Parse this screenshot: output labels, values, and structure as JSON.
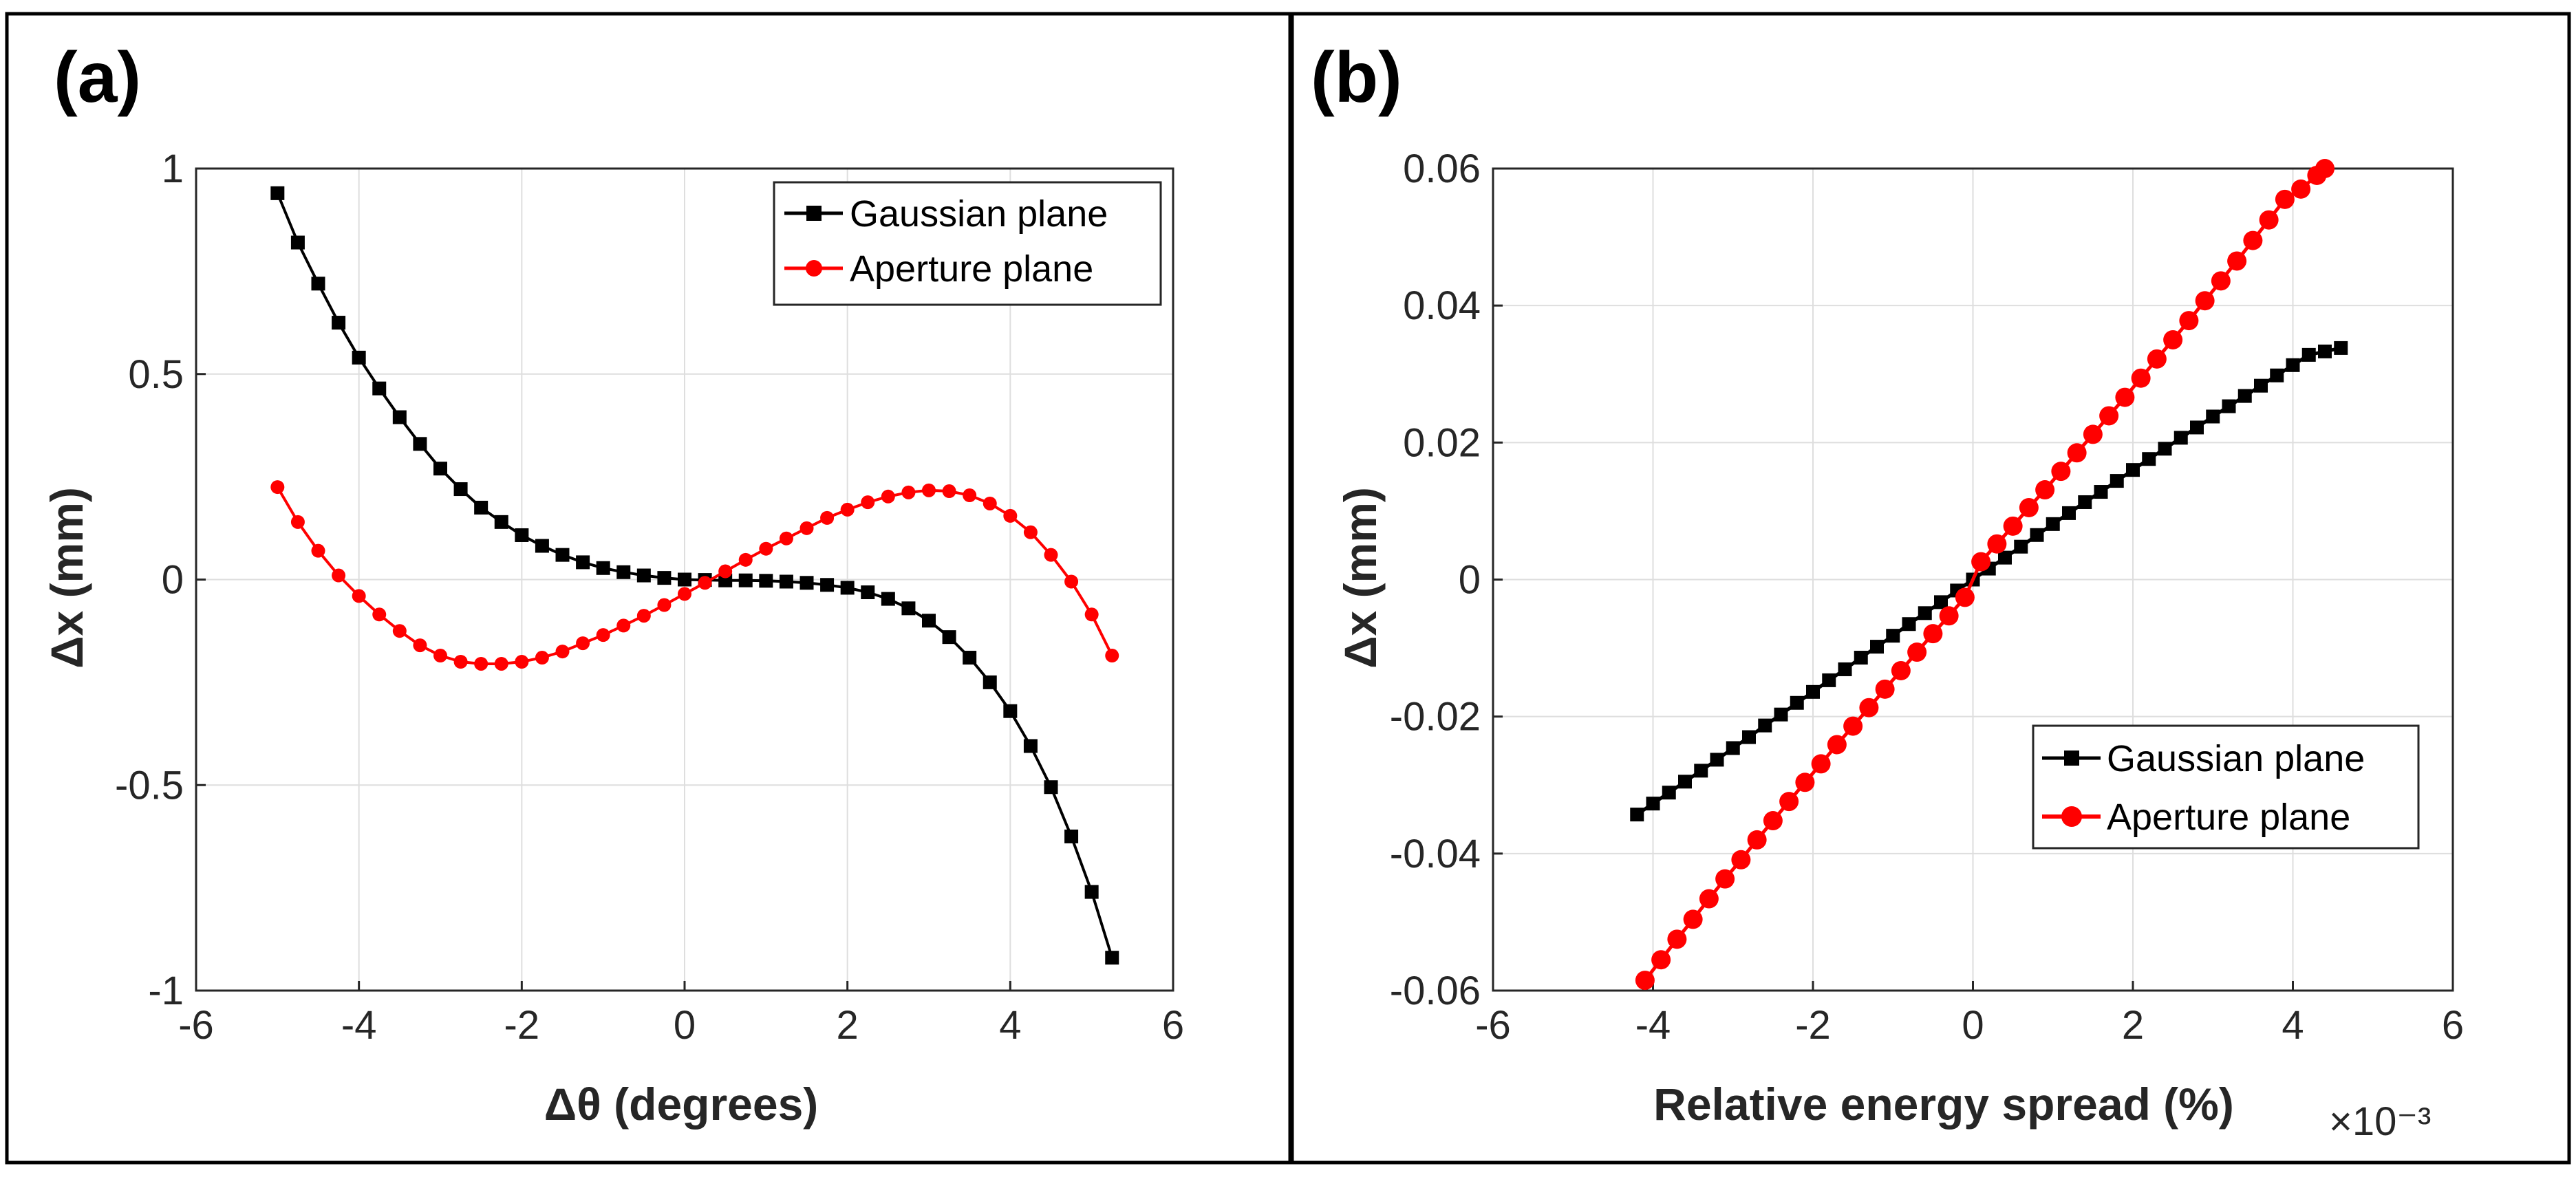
{
  "colors": {
    "gaussian": "#000000",
    "aperture": "#ff0000"
  },
  "chart_data": [
    {
      "type": "line",
      "panel_label": "(a)",
      "xlabel": "Δθ (degrees)",
      "ylabel": "Δx (mm)",
      "xlim": [
        -6,
        6
      ],
      "ylim": [
        -1,
        1
      ],
      "xticks": [
        "-6",
        "-4",
        "-2",
        "0",
        "2",
        "4",
        "6"
      ],
      "yticks": [
        "-1",
        "-0.5",
        "0",
        "0.5",
        "1"
      ],
      "grid": true,
      "legend_position": "top-right",
      "series": [
        {
          "name": "Gaussian plane",
          "marker": "square",
          "color": "#000000",
          "x": [
            -5.0,
            -4.75,
            -4.5,
            -4.25,
            -4.0,
            -3.75,
            -3.5,
            -3.25,
            -3.0,
            -2.75,
            -2.5,
            -2.25,
            -2.0,
            -1.75,
            -1.5,
            -1.25,
            -1.0,
            -0.75,
            -0.5,
            -0.25,
            0.0,
            0.25,
            0.5,
            0.75,
            1.0,
            1.25,
            1.5,
            1.75,
            2.0,
            2.25,
            2.5,
            2.75,
            3.0,
            3.25,
            3.5,
            3.75,
            4.0,
            4.25,
            4.5,
            4.75,
            5.0,
            5.25
          ],
          "y": [
            0.94,
            0.82,
            0.72,
            0.625,
            0.54,
            0.465,
            0.395,
            0.33,
            0.27,
            0.22,
            0.175,
            0.14,
            0.108,
            0.082,
            0.06,
            0.042,
            0.028,
            0.018,
            0.01,
            0.004,
            0.0,
            -0.001,
            -0.002,
            -0.002,
            -0.003,
            -0.005,
            -0.008,
            -0.013,
            -0.02,
            -0.031,
            -0.047,
            -0.07,
            -0.1,
            -0.14,
            -0.19,
            -0.25,
            -0.32,
            -0.405,
            -0.505,
            -0.625,
            -0.76,
            -0.92
          ]
        },
        {
          "name": "Aperture plane",
          "marker": "circle",
          "color": "#ff0000",
          "x": [
            -5.0,
            -4.75,
            -4.5,
            -4.25,
            -4.0,
            -3.75,
            -3.5,
            -3.25,
            -3.0,
            -2.75,
            -2.5,
            -2.25,
            -2.0,
            -1.75,
            -1.5,
            -1.25,
            -1.0,
            -0.75,
            -0.5,
            -0.25,
            0.0,
            0.25,
            0.5,
            0.75,
            1.0,
            1.25,
            1.5,
            1.75,
            2.0,
            2.25,
            2.5,
            2.75,
            3.0,
            3.25,
            3.5,
            3.75,
            4.0,
            4.25,
            4.5,
            4.75,
            5.0,
            5.25
          ],
          "y": [
            0.225,
            0.14,
            0.07,
            0.01,
            -0.04,
            -0.085,
            -0.125,
            -0.16,
            -0.185,
            -0.2,
            -0.205,
            -0.205,
            -0.2,
            -0.19,
            -0.175,
            -0.155,
            -0.135,
            -0.112,
            -0.088,
            -0.062,
            -0.035,
            -0.008,
            0.02,
            0.048,
            0.075,
            0.1,
            0.125,
            0.15,
            0.17,
            0.188,
            0.202,
            0.212,
            0.217,
            0.215,
            0.205,
            0.185,
            0.155,
            0.115,
            0.06,
            -0.005,
            -0.085,
            -0.185
          ]
        }
      ]
    },
    {
      "type": "line",
      "panel_label": "(b)",
      "xlabel": "Relative energy spread (%)",
      "ylabel": "Δx (mm)",
      "x_multiplier": "×10⁻³",
      "xlim": [
        -6,
        6
      ],
      "ylim": [
        -0.06,
        0.06
      ],
      "xticks": [
        "-6",
        "-4",
        "-2",
        "0",
        "2",
        "4",
        "6"
      ],
      "yticks": [
        "-0.06",
        "-0.04",
        "-0.02",
        "0",
        "0.02",
        "0.04",
        "0.06"
      ],
      "grid": true,
      "legend_position": "bottom-right",
      "series": [
        {
          "name": "Gaussian plane",
          "marker": "square",
          "color": "#000000",
          "x": [
            -4.2,
            -4.0,
            -3.8,
            -3.6,
            -3.4,
            -3.2,
            -3.0,
            -2.8,
            -2.6,
            -2.4,
            -2.2,
            -2.0,
            -1.8,
            -1.6,
            -1.4,
            -1.2,
            -1.0,
            -0.8,
            -0.6,
            -0.4,
            -0.2,
            0.0,
            0.2,
            0.4,
            0.6,
            0.8,
            1.0,
            1.2,
            1.4,
            1.6,
            1.8,
            2.0,
            2.2,
            2.4,
            2.6,
            2.8,
            3.0,
            3.2,
            3.4,
            3.6,
            3.8,
            4.0,
            4.2,
            4.4,
            4.6
          ],
          "y": [
            -0.0343,
            -0.0327,
            -0.0311,
            -0.0295,
            -0.0279,
            -0.0263,
            -0.0246,
            -0.023,
            -0.0213,
            -0.0197,
            -0.018,
            -0.0164,
            -0.0147,
            -0.0131,
            -0.0114,
            -0.0098,
            -0.0082,
            -0.0065,
            -0.0049,
            -0.0033,
            -0.0016,
            0.0,
            0.0016,
            0.0032,
            0.0048,
            0.0065,
            0.0081,
            0.0097,
            0.0113,
            0.0128,
            0.0144,
            0.016,
            0.0176,
            0.0191,
            0.0207,
            0.0222,
            0.0238,
            0.0253,
            0.0268,
            0.0283,
            0.0298,
            0.0313,
            0.0328,
            0.0333,
            0.0338
          ]
        },
        {
          "name": "Aperture plane",
          "marker": "circle",
          "color": "#ff0000",
          "x": [
            -4.1,
            -3.9,
            -3.7,
            -3.5,
            -3.3,
            -3.1,
            -2.9,
            -2.7,
            -2.5,
            -2.3,
            -2.1,
            -1.9,
            -1.7,
            -1.5,
            -1.3,
            -1.1,
            -0.9,
            -0.7,
            -0.5,
            -0.3,
            -0.1,
            0.1,
            0.3,
            0.5,
            0.7,
            0.9,
            1.1,
            1.3,
            1.5,
            1.7,
            1.9,
            2.1,
            2.3,
            2.5,
            2.7,
            2.9,
            3.1,
            3.3,
            3.5,
            3.7,
            3.9,
            4.1,
            4.3,
            4.4
          ],
          "y": [
            -0.0585,
            -0.0555,
            -0.0525,
            -0.0496,
            -0.0466,
            -0.0437,
            -0.0409,
            -0.038,
            -0.0352,
            -0.0324,
            -0.0296,
            -0.0269,
            -0.0241,
            -0.0214,
            -0.0187,
            -0.016,
            -0.0133,
            -0.0106,
            -0.0079,
            -0.0053,
            -0.0026,
            0.0026,
            0.0052,
            0.0078,
            0.0105,
            0.0131,
            0.0158,
            0.0185,
            0.0212,
            0.0239,
            0.0266,
            0.0294,
            0.0322,
            0.035,
            0.0378,
            0.0407,
            0.0436,
            0.0465,
            0.0495,
            0.0525,
            0.0555,
            0.057,
            0.059,
            0.06
          ]
        }
      ]
    }
  ]
}
